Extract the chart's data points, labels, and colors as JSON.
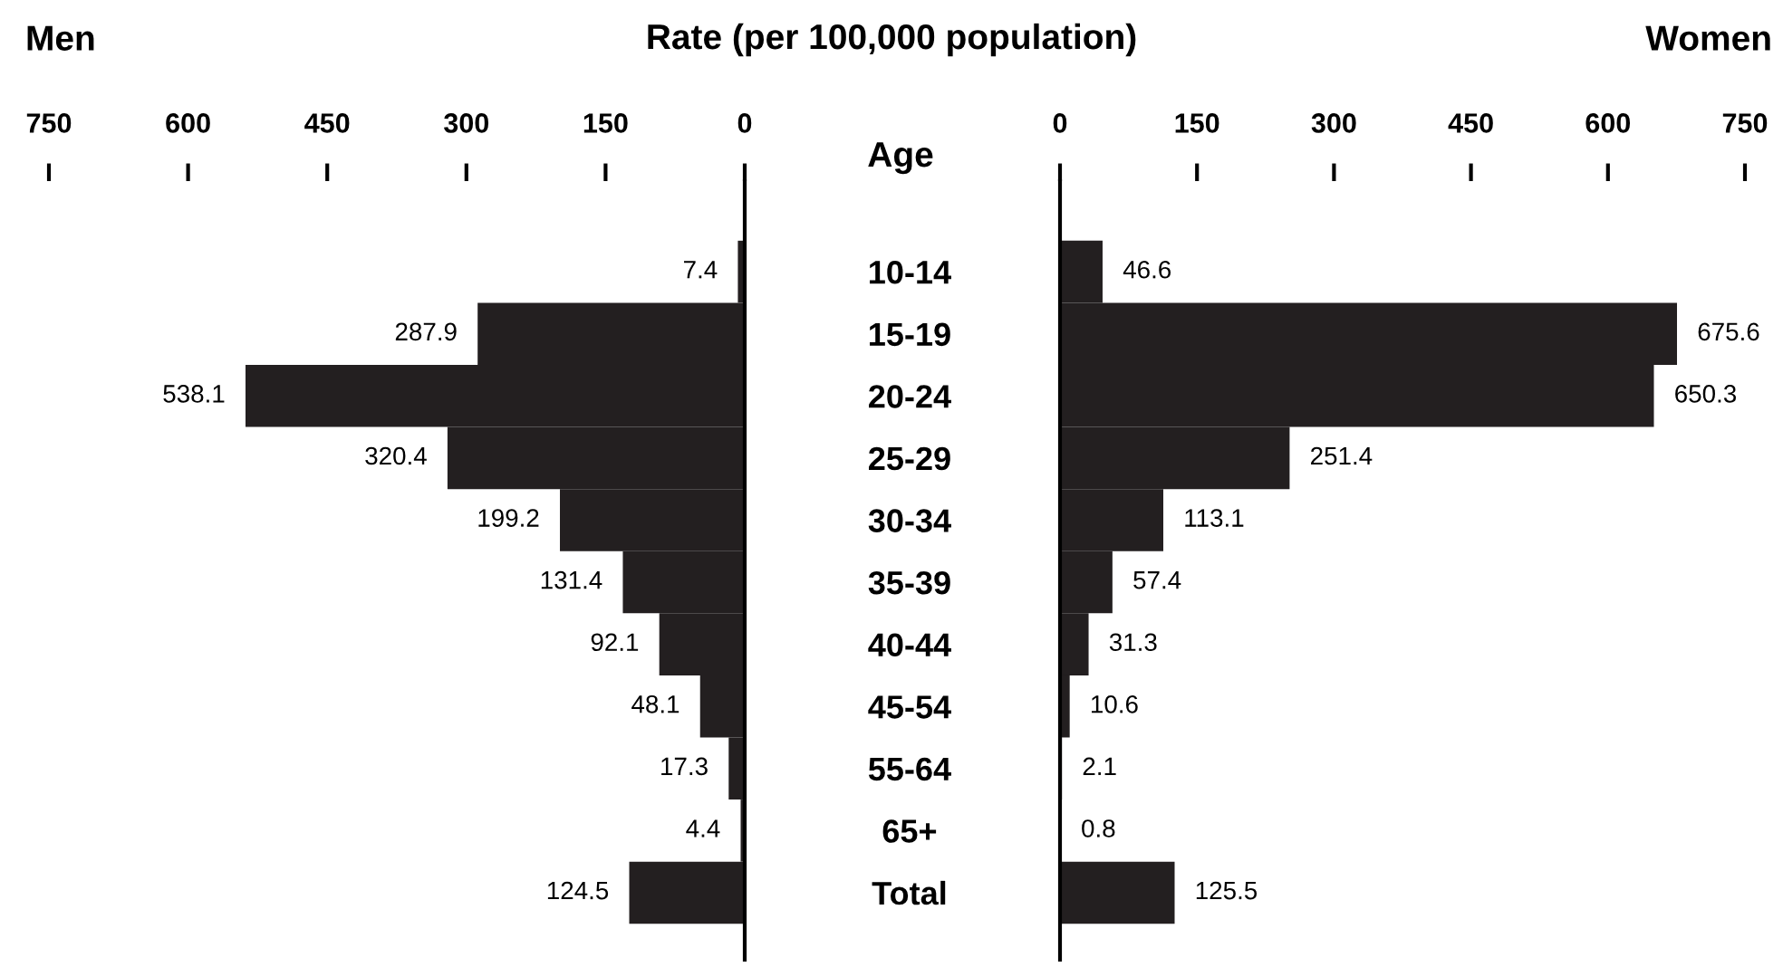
{
  "chart_data": [
    {
      "type": "bar",
      "orientation": "horizontal",
      "title": "Men",
      "ylabel": "Age",
      "annotations": [
        "Rate (per 100,000 population)"
      ],
      "categories": [
        "10-14",
        "15-19",
        "20-24",
        "25-29",
        "30-34",
        "35-39",
        "40-44",
        "45-54",
        "55-64",
        "65+",
        "Total"
      ],
      "values": [
        7.4,
        287.9,
        538.1,
        320.4,
        199.2,
        131.4,
        92.1,
        48.1,
        17.3,
        4.4,
        124.5
      ],
      "color": "#231f20",
      "xlim": [
        750,
        0
      ],
      "xticks": [
        750,
        600,
        450,
        300,
        150,
        0
      ],
      "data_labels": true
    },
    {
      "type": "bar",
      "orientation": "horizontal",
      "title": "Women",
      "tick_labels": "x",
      "values": [
        46.6,
        675.6,
        650.3,
        251.4,
        113.1,
        57.4,
        31.3,
        10.6,
        2.1,
        0.8,
        125.5
      ],
      "color": "#231f20",
      "xlim": [
        0,
        750
      ],
      "xticks": [
        0,
        150,
        300,
        450,
        600,
        750
      ],
      "data_labels": true
    }
  ]
}
